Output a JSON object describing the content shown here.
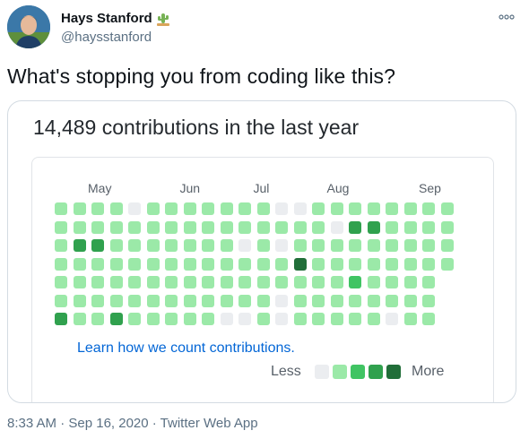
{
  "author": {
    "display_name": "Hays Stanford",
    "handle": "@haysstanford",
    "avatar_icon": "avatar-photo-icon",
    "badge_icon": "cactus-emoji-icon"
  },
  "tweet": {
    "text": "What's stopping you from coding like this?",
    "timestamp": "8:33 AM · Sep 16, 2020 · Twitter Web App"
  },
  "card": {
    "title": "14,489 contributions in the last year",
    "learn_link": "Learn how we count contributions.",
    "legend_less": "Less",
    "legend_more": "More"
  },
  "colors": {
    "level0": "#ebedf0",
    "level1": "#9be9a8",
    "level2": "#40c463",
    "level3": "#30a14e",
    "level4": "#216e39",
    "link": "#0366d6"
  },
  "chart_data": {
    "type": "heatmap",
    "months": [
      "May",
      "Jun",
      "Jul",
      "Aug",
      "Sep"
    ],
    "month_week_index": [
      2,
      7,
      11,
      15,
      20
    ],
    "legend_levels": [
      0,
      1,
      2,
      3,
      4
    ],
    "grid": [
      [
        1,
        1,
        1,
        1,
        0,
        1,
        1,
        1,
        1,
        1,
        1,
        1,
        0,
        0,
        1,
        1,
        1,
        1,
        1,
        1,
        1,
        1
      ],
      [
        1,
        1,
        1,
        1,
        1,
        1,
        1,
        1,
        1,
        1,
        1,
        1,
        1,
        1,
        1,
        0,
        3,
        3,
        1,
        1,
        1,
        1
      ],
      [
        1,
        3,
        3,
        1,
        1,
        1,
        1,
        1,
        1,
        1,
        0,
        1,
        0,
        1,
        1,
        1,
        1,
        1,
        1,
        1,
        1,
        1
      ],
      [
        1,
        1,
        1,
        1,
        1,
        1,
        1,
        1,
        1,
        1,
        1,
        1,
        1,
        4,
        1,
        1,
        1,
        1,
        1,
        1,
        1,
        1
      ],
      [
        1,
        1,
        1,
        1,
        1,
        1,
        1,
        1,
        1,
        1,
        1,
        1,
        1,
        1,
        1,
        1,
        2,
        1,
        1,
        1,
        1,
        -1
      ],
      [
        1,
        1,
        1,
        1,
        1,
        1,
        1,
        1,
        1,
        1,
        1,
        1,
        0,
        1,
        1,
        1,
        1,
        1,
        1,
        1,
        1,
        -1
      ],
      [
        3,
        1,
        1,
        3,
        1,
        1,
        1,
        1,
        1,
        0,
        0,
        1,
        0,
        1,
        1,
        1,
        1,
        1,
        0,
        1,
        1,
        -1
      ]
    ]
  }
}
